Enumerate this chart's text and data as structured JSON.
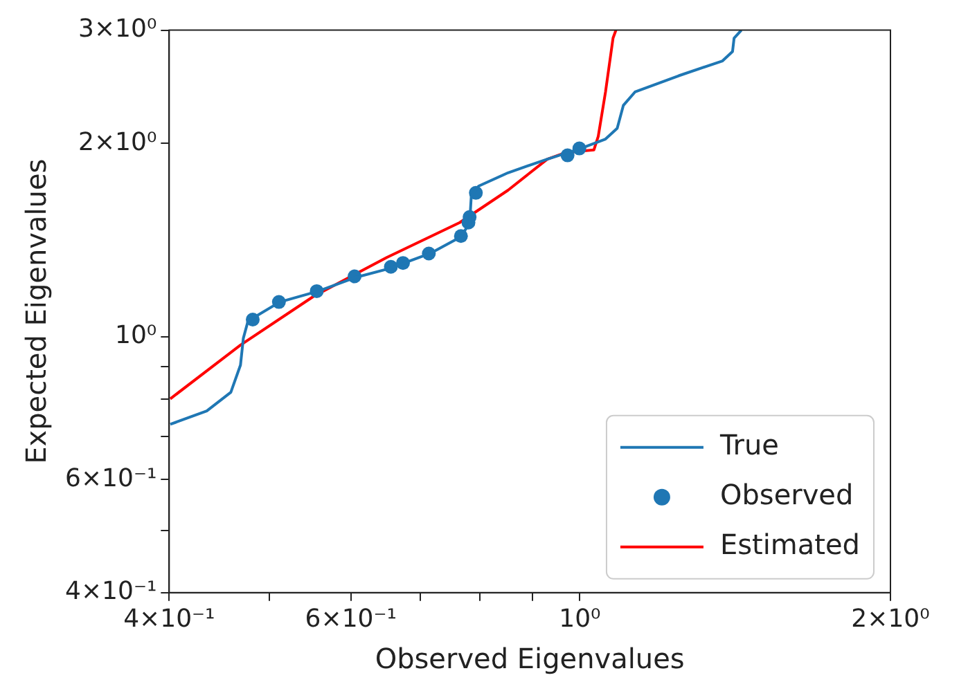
{
  "chart_data": {
    "type": "line",
    "xlabel": "Observed Eigenvalues",
    "ylabel": "Expected Eigenvalues",
    "log": "xy",
    "grid": false,
    "legend": "bottom right",
    "xlim": [
      0.4,
      2
    ],
    "ylim": [
      0.4,
      3
    ],
    "xticks": [
      {
        "value": 0.4,
        "label": "4×10⁻¹"
      },
      {
        "value": 0.5,
        "label": null
      },
      {
        "value": 0.6,
        "label": "6×10⁻¹"
      },
      {
        "value": 0.7,
        "label": null
      },
      {
        "value": 0.8,
        "label": null
      },
      {
        "value": 0.9,
        "label": null
      },
      {
        "value": 1,
        "label": "10⁰"
      },
      {
        "value": 2,
        "label": "2×10⁰"
      }
    ],
    "yticks": [
      {
        "value": 0.4,
        "label": "4×10⁻¹"
      },
      {
        "value": 0.5,
        "label": null
      },
      {
        "value": 0.6,
        "label": "6×10⁻¹"
      },
      {
        "value": 0.7,
        "label": null
      },
      {
        "value": 0.8,
        "label": null
      },
      {
        "value": 0.9,
        "label": null
      },
      {
        "value": 1,
        "label": "10⁰"
      },
      {
        "value": 2,
        "label": "2×10⁰"
      },
      {
        "value": 3,
        "label": "3×10⁰"
      }
    ],
    "series": [
      {
        "name": "True",
        "marker": "none",
        "color": "#1f77b4",
        "x": [
          0.401,
          0.435,
          0.459,
          0.469,
          0.472,
          0.477,
          0.482,
          0.512,
          0.558,
          0.605,
          0.656,
          0.676,
          0.716,
          0.765,
          0.782,
          0.785,
          0.798,
          0.852,
          0.93,
          1.002,
          1.059,
          1.087,
          1.102,
          1.131,
          1.247,
          1.375,
          1.406,
          1.411,
          1.434
        ],
        "values": [
          0.731,
          0.767,
          0.82,
          0.904,
          0.995,
          1.059,
          1.069,
          1.133,
          1.178,
          1.236,
          1.279,
          1.303,
          1.348,
          1.428,
          1.499,
          1.659,
          1.716,
          1.8,
          1.89,
          1.964,
          2.031,
          2.111,
          2.291,
          2.404,
          2.548,
          2.687,
          2.779,
          2.916,
          3.0
        ]
      },
      {
        "name": "Observed",
        "type": "scatter",
        "marker": "circle",
        "color": "#1f77b4",
        "x": [
          0.482,
          0.511,
          0.556,
          0.605,
          0.656,
          0.674,
          0.714,
          0.767,
          0.78,
          0.782,
          0.793,
          0.973,
          0.999
        ],
        "values": [
          1.064,
          1.133,
          1.178,
          1.242,
          1.285,
          1.303,
          1.348,
          1.435,
          1.506,
          1.536,
          1.675,
          1.916,
          1.964
        ]
      },
      {
        "name": "Estimated",
        "marker": "none",
        "color": "#ff0000",
        "x": [
          0.401,
          0.469,
          0.552,
          0.65,
          0.765,
          0.852,
          0.93,
          0.97,
          1.032,
          1.042,
          1.059,
          1.077,
          1.084
        ],
        "values": [
          0.801,
          0.971,
          1.156,
          1.329,
          1.506,
          1.691,
          1.89,
          1.936,
          1.954,
          2.051,
          2.404,
          2.916,
          3.0
        ]
      }
    ]
  }
}
